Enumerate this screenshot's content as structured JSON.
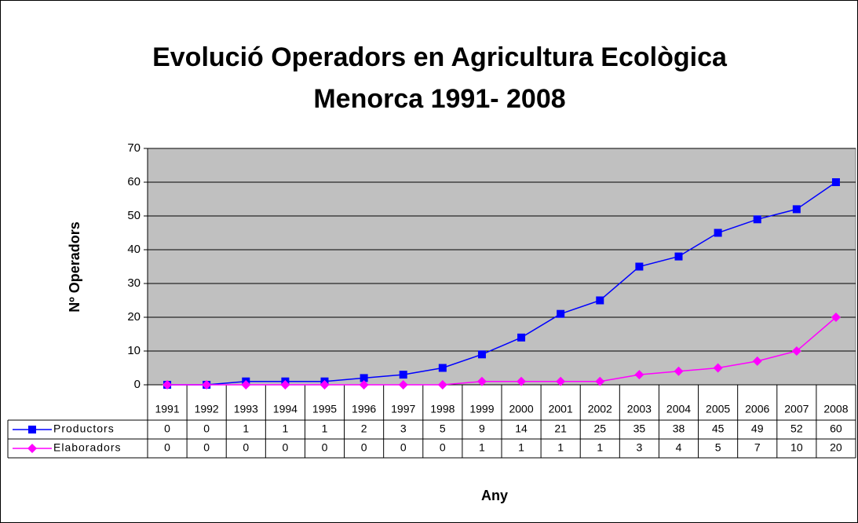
{
  "chart_data": {
    "type": "line",
    "title": [
      "Evolució Operadors en Agricultura Ecològica",
      "Menorca 1991- 2008"
    ],
    "x_label": "Any",
    "y_label": "Nº Operadors",
    "categories": [
      "1991",
      "1992",
      "1993",
      "1994",
      "1995",
      "1996",
      "1997",
      "1998",
      "1999",
      "2000",
      "2001",
      "2002",
      "2003",
      "2004",
      "2005",
      "2006",
      "2007",
      "2008"
    ],
    "series": [
      {
        "name": "Productors",
        "color": "#0000ff",
        "marker": "square",
        "values": [
          0,
          0,
          1,
          1,
          1,
          2,
          3,
          5,
          9,
          14,
          21,
          25,
          35,
          38,
          45,
          49,
          52,
          60
        ]
      },
      {
        "name": "Elaboradors",
        "color": "#ff00ff",
        "marker": "diamond",
        "values": [
          0,
          0,
          0,
          0,
          0,
          0,
          0,
          0,
          1,
          1,
          1,
          1,
          3,
          4,
          5,
          7,
          10,
          20
        ]
      }
    ],
    "ylim": [
      0,
      70
    ],
    "yticks": [
      0,
      10,
      20,
      30,
      40,
      50,
      60,
      70
    ],
    "grid": true,
    "plot_background": "#c0c0c0"
  }
}
